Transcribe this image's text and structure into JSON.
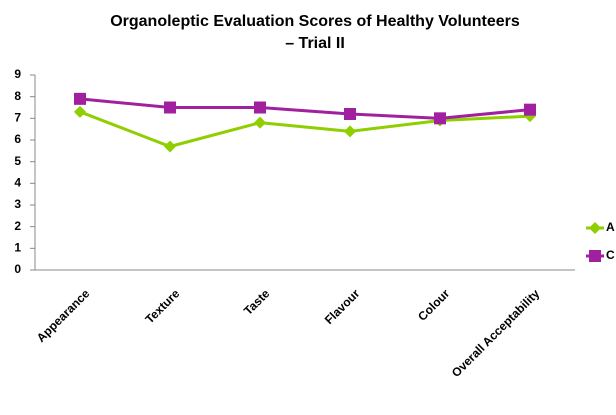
{
  "chart_data": {
    "type": "line",
    "title": [
      "Organoleptic Evaluation Scores of Healthy Volunteers",
      "– Trial II"
    ],
    "categories": [
      "Appearance",
      "Texture",
      "Taste",
      "Flavour",
      "Colour",
      "Overall Acceptability"
    ],
    "series": [
      {
        "name": "A",
        "color": "#8fce00",
        "marker": "diamond",
        "values": [
          7.3,
          5.7,
          6.8,
          6.4,
          6.9,
          7.1
        ]
      },
      {
        "name": "C",
        "color": "#a020a0",
        "marker": "square",
        "values": [
          7.9,
          7.5,
          7.5,
          7.2,
          7.0,
          7.4
        ]
      }
    ],
    "ylim": [
      0,
      9
    ],
    "yticks": [
      0,
      1,
      2,
      3,
      4,
      5,
      6,
      7,
      8,
      9
    ],
    "grid": false,
    "legend": "right"
  }
}
